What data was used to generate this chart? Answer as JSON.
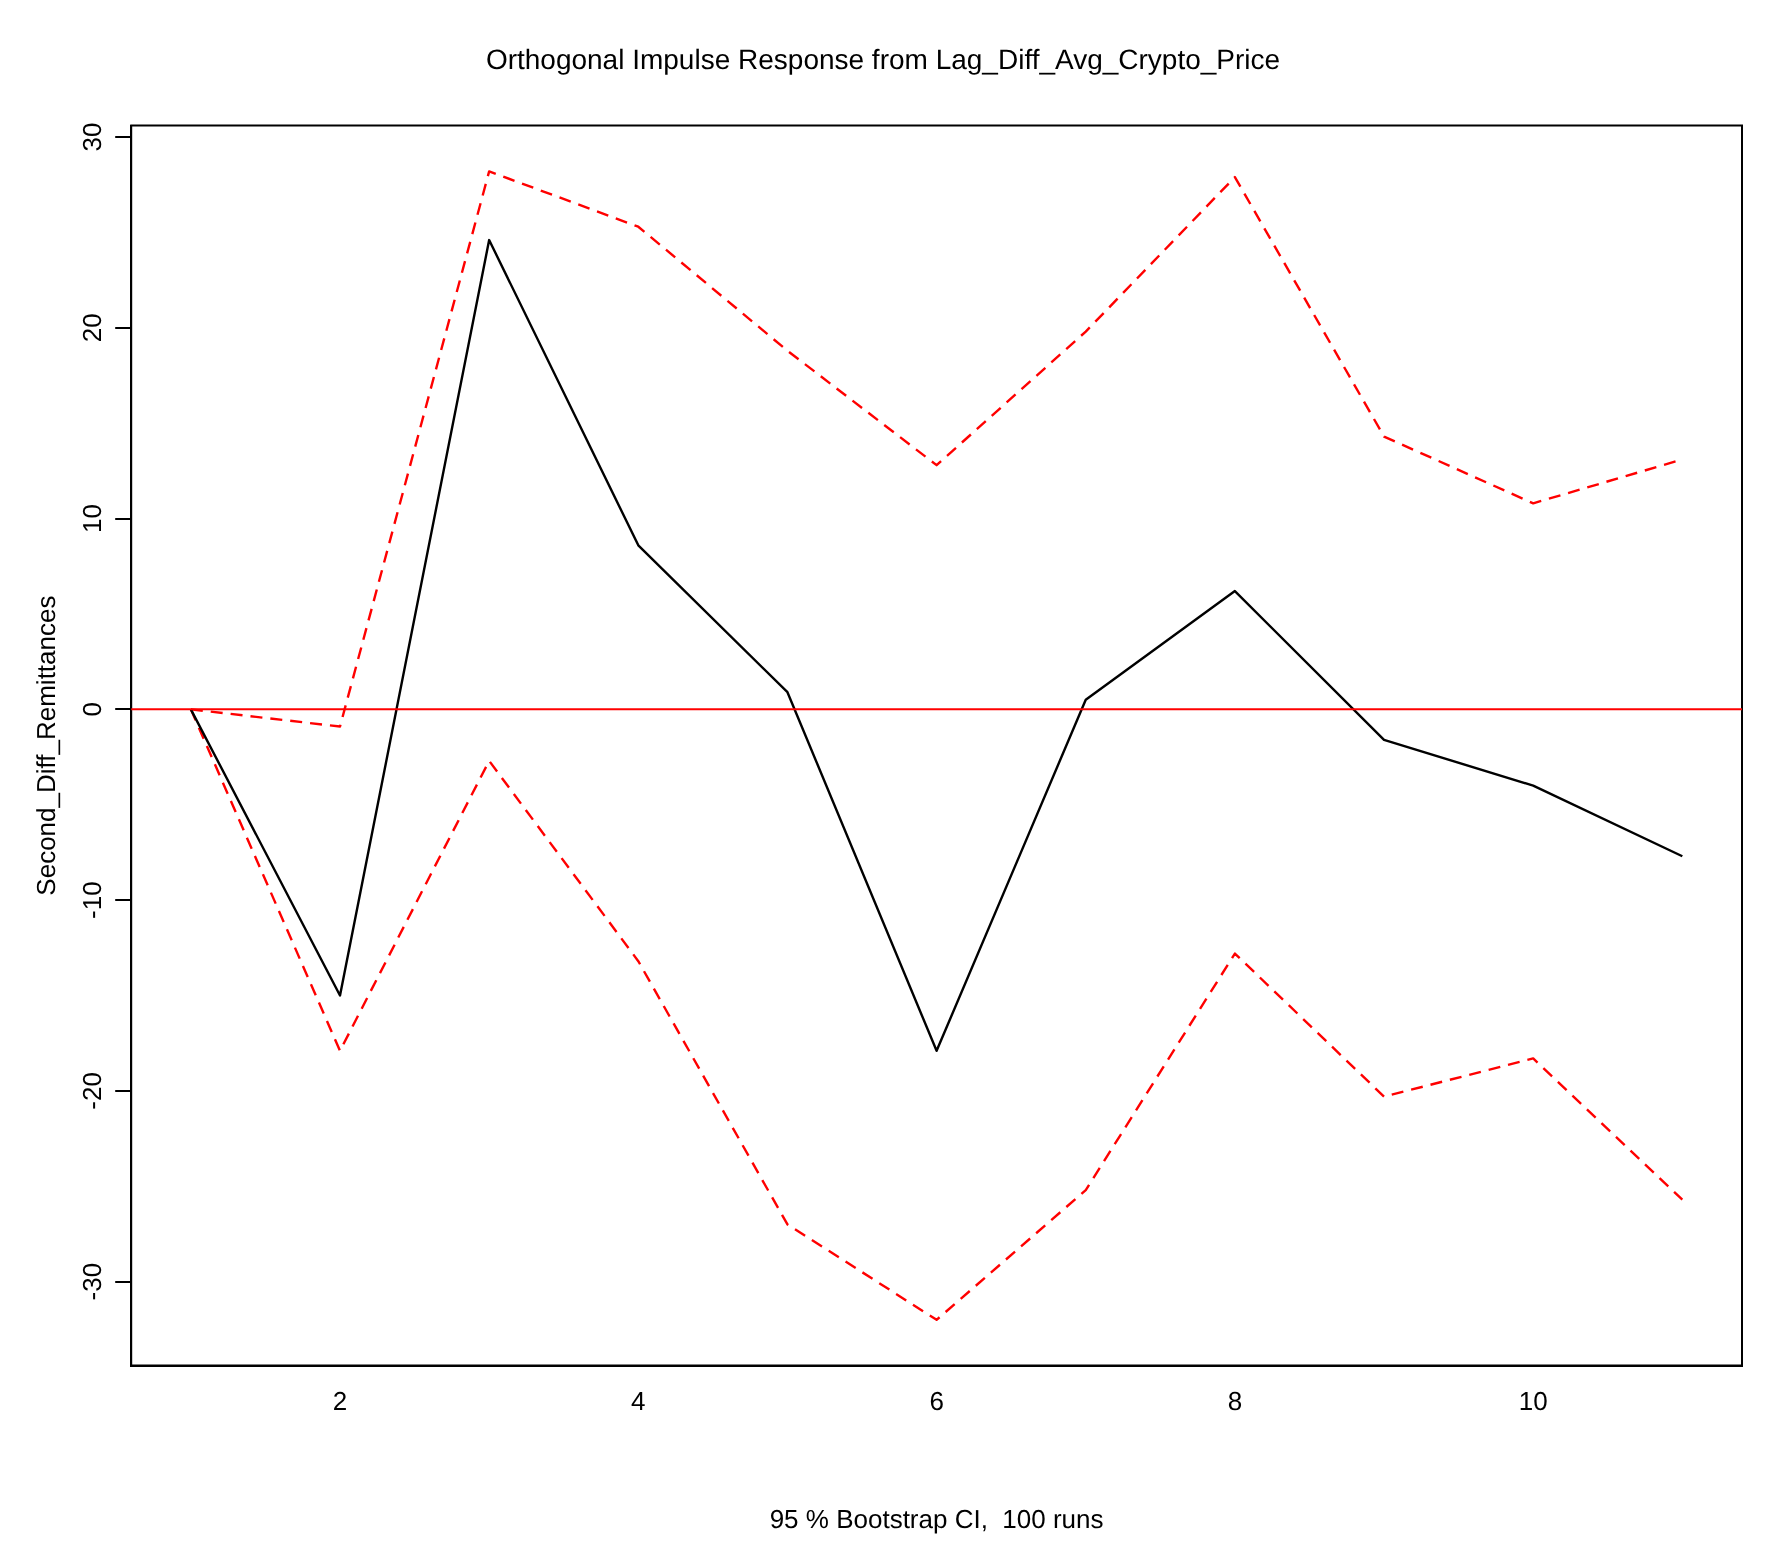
{
  "chart_data": {
    "type": "line",
    "title": "Orthogonal Impulse Response from Lag_Diff_Avg_Crypto_Price",
    "xlabel": "95 % Bootstrap CI,  100 runs",
    "ylabel": "Second_Diff_Remittances",
    "x": [
      1,
      2,
      3,
      4,
      5,
      6,
      7,
      8,
      9,
      10,
      11
    ],
    "series": [
      {
        "color": "#000000",
        "line_style": "solid",
        "values": [
          0,
          -15,
          24.6,
          8.6,
          0.9,
          -17.9,
          0.5,
          6.2,
          -1.6,
          -4,
          -7.7
        ]
      },
      {
        "color": "#ff0000",
        "line_style": "dashed",
        "values": [
          0,
          -0.9,
          28.2,
          25.3,
          18.8,
          12.8,
          19.8,
          27.9,
          14.3,
          10.8,
          13.1
        ]
      },
      {
        "color": "#ff0000",
        "line_style": "dashed",
        "values": [
          0,
          -17.9,
          -2.7,
          -13.2,
          -27,
          -32,
          -25.2,
          -12.8,
          -20.3,
          -18.3,
          -25.7
        ]
      }
    ],
    "xlim": [
      0.6,
      11.4
    ],
    "xticks": [
      2,
      4,
      6,
      8,
      10
    ],
    "ylim": [
      -34.4,
      30.6
    ],
    "yticks": [
      -30,
      -20,
      -10,
      0,
      10,
      20,
      30
    ],
    "ref_lines": [
      {
        "axis": "y",
        "value": 0,
        "color": "#ff0000",
        "line_style": "solid"
      }
    ],
    "grid": false,
    "legend": false,
    "marker": "none"
  }
}
